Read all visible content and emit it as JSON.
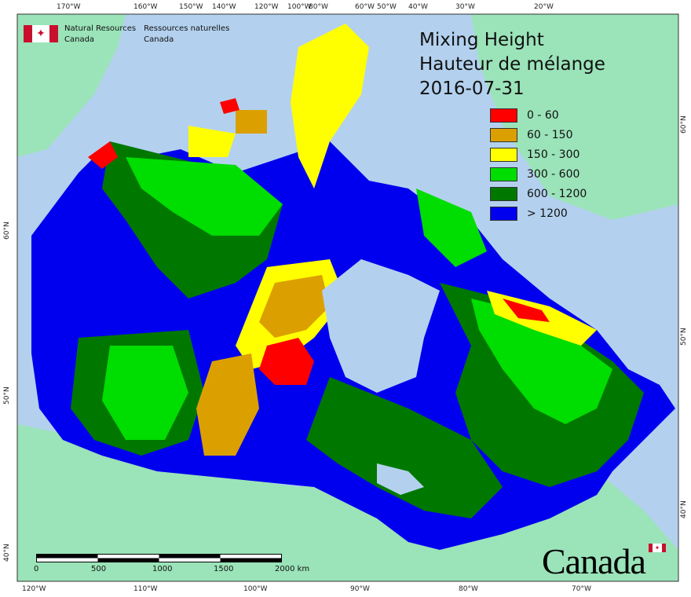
{
  "agency": {
    "english_line1": "Natural Resources",
    "english_line2": "Canada",
    "french_line1": "Ressources naturelles",
    "french_line2": "Canada"
  },
  "title": {
    "line1": "Mixing Height",
    "line2": "Hauteur de mélange",
    "date": "2016-07-31"
  },
  "legend": [
    {
      "label": "0 - 60",
      "color": "#ff0000"
    },
    {
      "label": "60 - 150",
      "color": "#dba000"
    },
    {
      "label": "150 - 300",
      "color": "#ffff00"
    },
    {
      "label": "300 - 600",
      "color": "#00dd00"
    },
    {
      "label": "600 - 1200",
      "color": "#007800"
    },
    {
      "label": "> 1200",
      "color": "#0000ee"
    }
  ],
  "top_longitudes": [
    "170°W",
    "160°W",
    "150°W",
    "140°W",
    "120°W",
    "100°W",
    "80°W",
    "60°W",
    "50°W",
    "40°W",
    "30°W",
    "20°W"
  ],
  "bottom_longitudes": [
    "120°W",
    "110°W",
    "100°W",
    "90°W",
    "80°W",
    "70°W"
  ],
  "left_latitudes": [
    "60°N",
    "50°N",
    "40°N"
  ],
  "right_latitudes": [
    "60°N",
    "50°N",
    "40°N"
  ],
  "scale_bar": {
    "ticks": [
      "0",
      "500",
      "1000",
      "1500",
      "2000 km"
    ]
  },
  "wordmark": "Canada",
  "colors": {
    "ocean": "#b3d1ee",
    "foreign_land": "#9be3b9",
    "lakes": "#b3d1ee"
  }
}
